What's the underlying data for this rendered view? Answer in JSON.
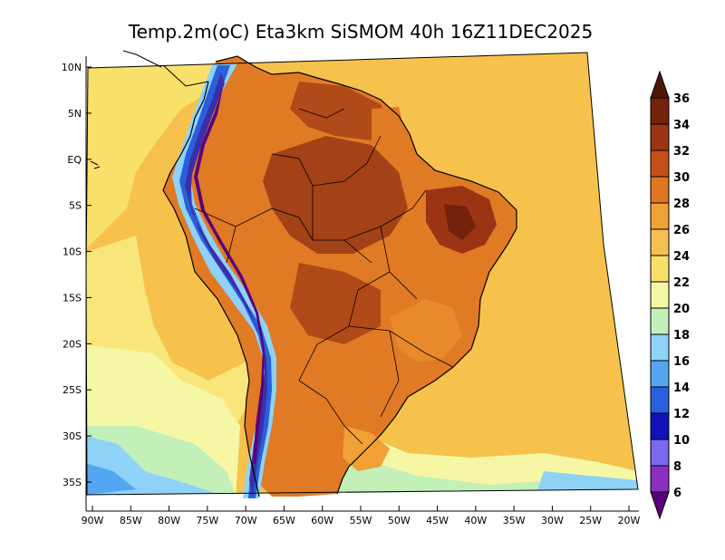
{
  "title": "Temp.2m(oC) Eta3km SiSMOM 40h 16Z11DEC2025",
  "map": {
    "variable": "2 m air temperature",
    "units": "oC",
    "model": "Eta3km SiSMOM",
    "forecast_hour": "40h",
    "valid_time": "16Z11DEC2025",
    "lon_ticks": [
      "90W",
      "85W",
      "80W",
      "75W",
      "70W",
      "65W",
      "60W",
      "55W",
      "50W",
      "45W",
      "40W",
      "35W",
      "30W",
      "25W",
      "20W"
    ],
    "lat_ticks": [
      "10N",
      "5N",
      "EQ",
      "5S",
      "10S",
      "15S",
      "20S",
      "25S",
      "30S",
      "35S"
    ]
  },
  "colorbar": {
    "labels": [
      "6",
      "8",
      "10",
      "12",
      "14",
      "16",
      "18",
      "20",
      "22",
      "24",
      "26",
      "28",
      "30",
      "32",
      "34",
      "36"
    ],
    "colors": [
      "#5a007a",
      "#8a2fc0",
      "#7a68ee",
      "#1212b8",
      "#2a5fdc",
      "#54a6f0",
      "#8ed2f8",
      "#c2f0b8",
      "#f6f7a4",
      "#f8e06a",
      "#f4c050",
      "#f0a034",
      "#e27620",
      "#c45018",
      "#9a3412",
      "#73220c",
      "#4e1608"
    ]
  }
}
